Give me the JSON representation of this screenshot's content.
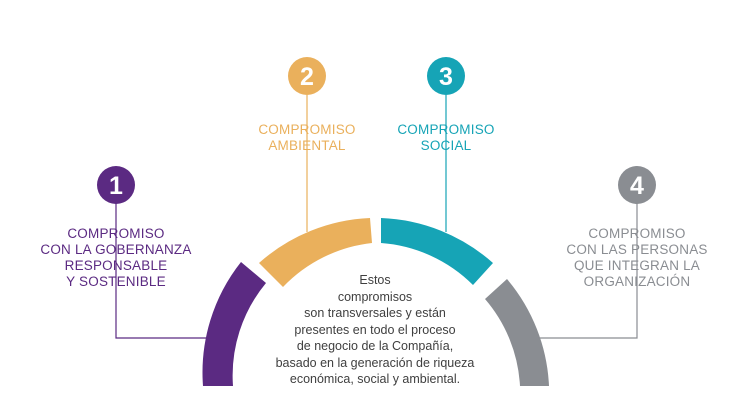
{
  "colors": {
    "c1": "#5b2a82",
    "c2": "#eab05c",
    "c3": "#16a4b6",
    "c4": "#8a8d92",
    "text": "#3f3f3f"
  },
  "commitments": [
    {
      "number": "1",
      "lines": [
        "COMPROMISO",
        "CON LA GOBERNANZA",
        "RESPONSABLE",
        "Y SOSTENIBLE"
      ]
    },
    {
      "number": "2",
      "lines": [
        "COMPROMISO",
        "AMBIENTAL"
      ]
    },
    {
      "number": "3",
      "lines": [
        "COMPROMISO",
        "SOCIAL"
      ]
    },
    {
      "number": "4",
      "lines": [
        "COMPROMISO",
        "CON LAS PERSONAS",
        "QUE INTEGRAN LA",
        "ORGANIZACIÓN"
      ]
    }
  ],
  "center": {
    "lines": [
      "Estos",
      "compromisos",
      "son transversales y están",
      "presentes en todo el proceso",
      "de negocio de la Compañía,",
      "basado en la generación de riqueza",
      "económica, social y ambiental."
    ]
  }
}
